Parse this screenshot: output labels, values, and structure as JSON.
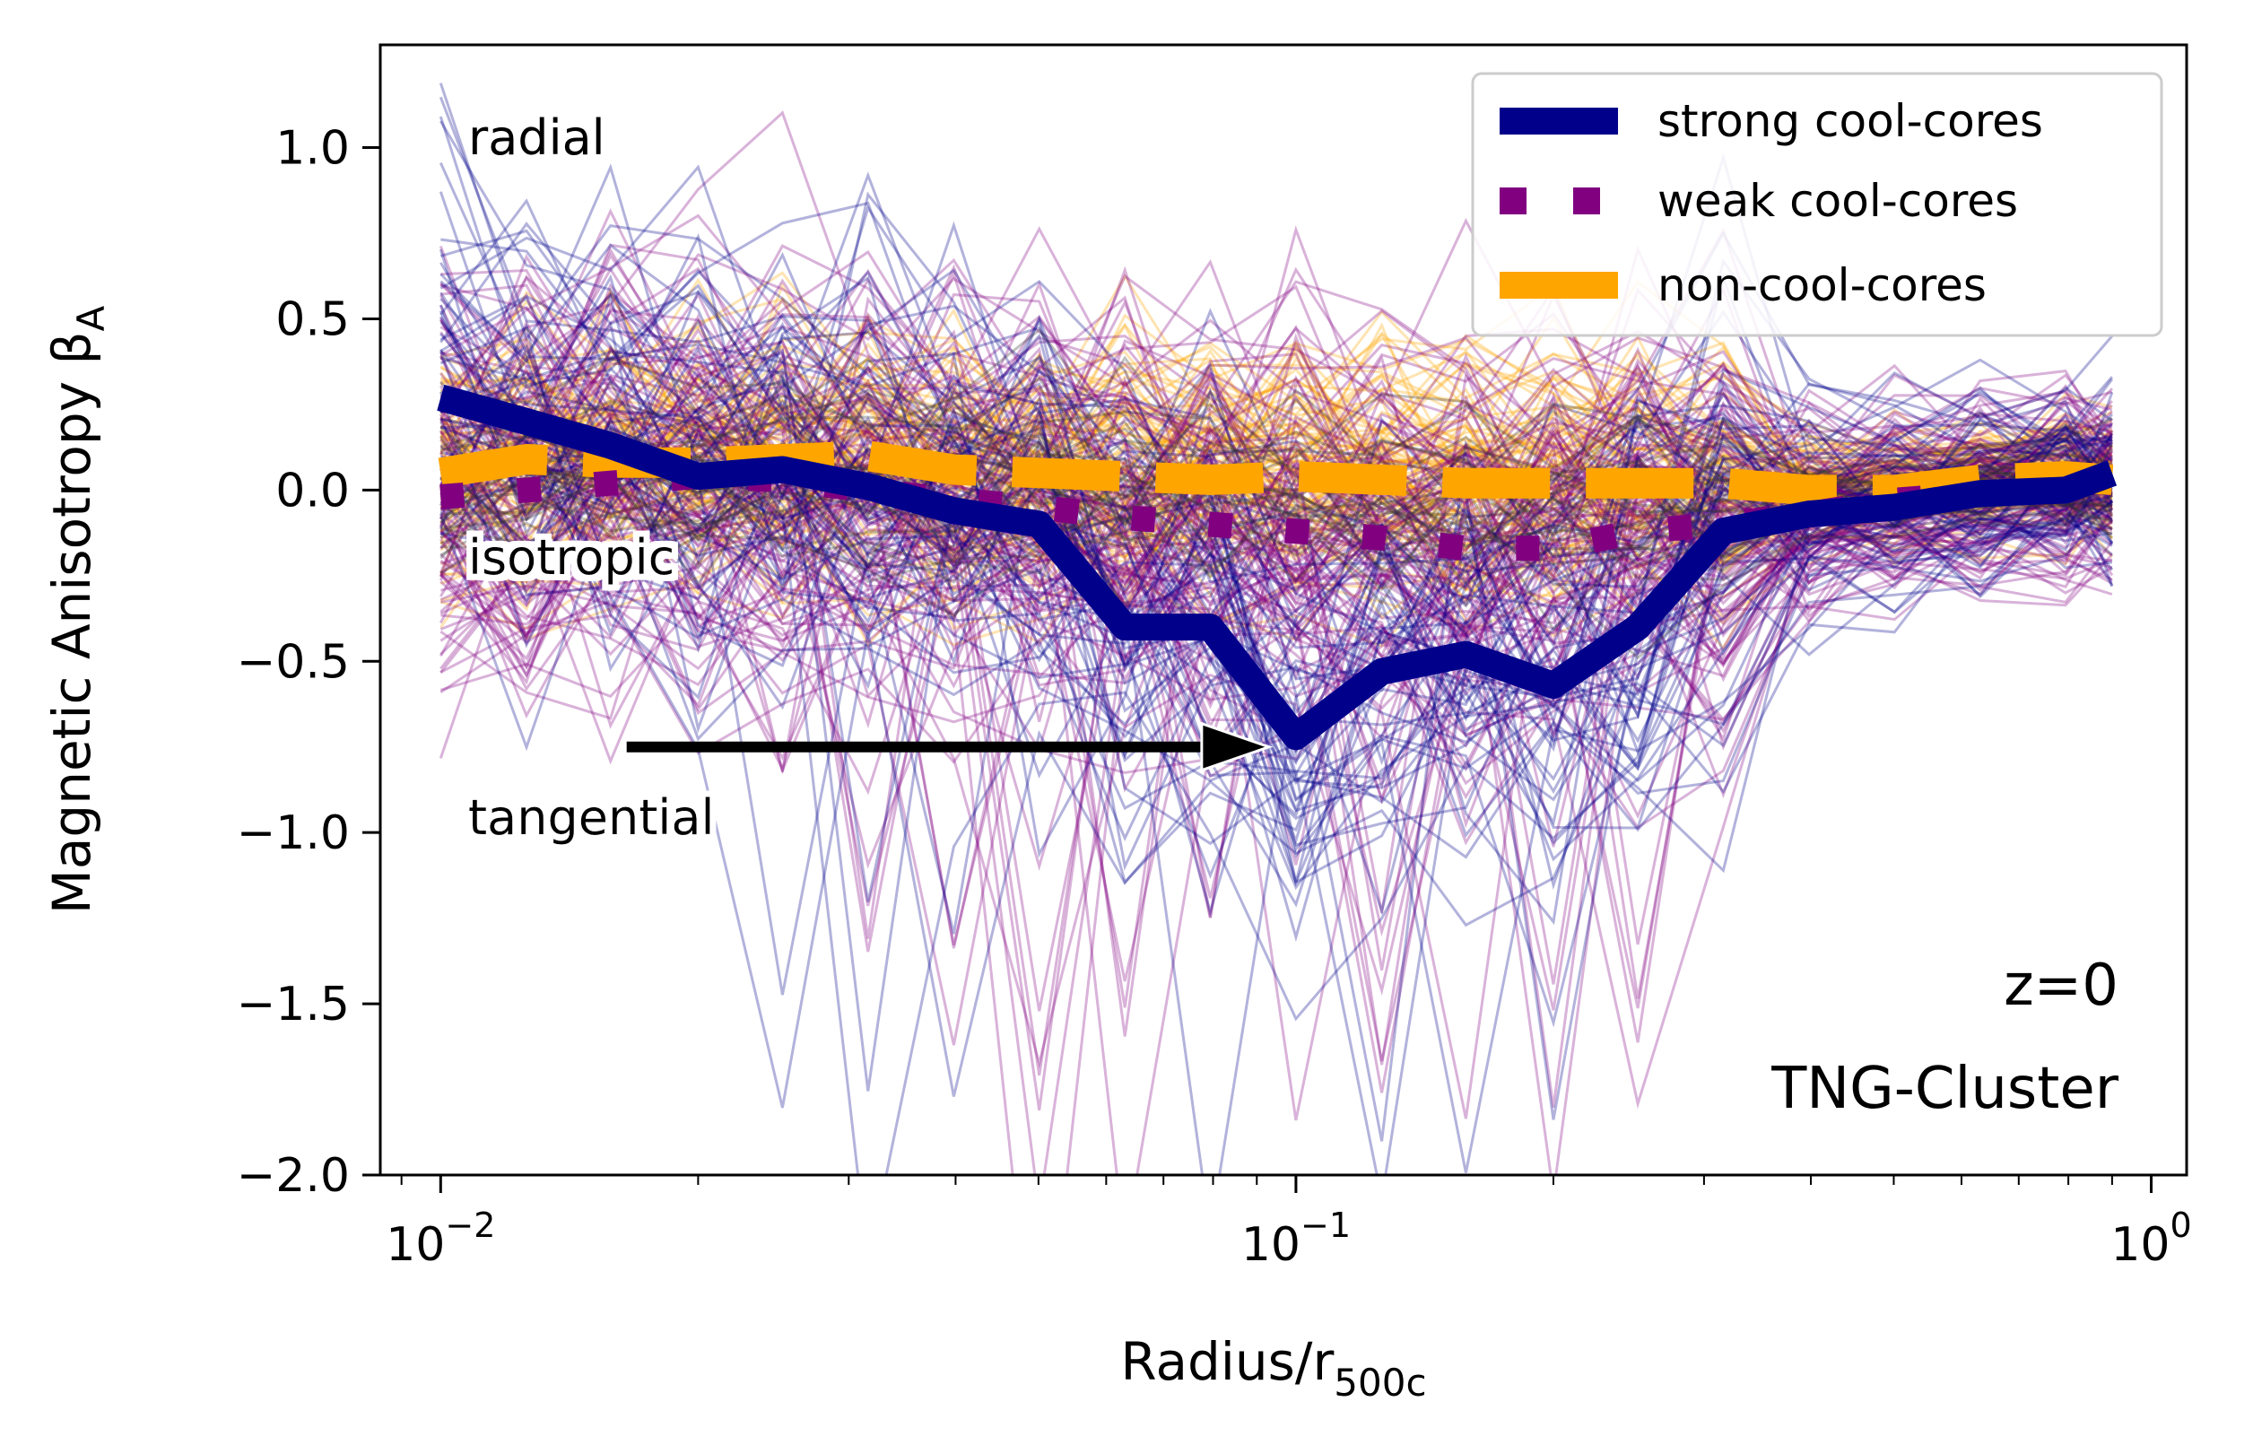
{
  "chart_data": {
    "type": "line",
    "xscale": "log",
    "xlim": [
      0.0085,
      1.1
    ],
    "ylim": [
      -2.0,
      1.3
    ],
    "xlabel_main": "Radius/r",
    "xlabel_sub": "500c",
    "ylabel_main": "Magnetic Anisotropy β",
    "ylabel_sub": "A",
    "xticks": [
      {
        "value": 0.01,
        "base": "10",
        "exp": "−2"
      },
      {
        "value": 0.1,
        "base": "10",
        "exp": "−1"
      },
      {
        "value": 1,
        "base": "10",
        "exp": "0"
      }
    ],
    "yticks": [
      {
        "value": 1.0,
        "label": "1.0"
      },
      {
        "value": 0.5,
        "label": "0.5"
      },
      {
        "value": 0.0,
        "label": "0.0"
      },
      {
        "value": -0.5,
        "label": "−0.5"
      },
      {
        "value": -1.0,
        "label": "−1.0"
      },
      {
        "value": -1.5,
        "label": "−1.5"
      },
      {
        "value": -2.0,
        "label": "−2.0"
      }
    ],
    "legend_position": "top-right",
    "series": [
      {
        "name": "strong cool-cores",
        "color": "#00008b",
        "style": "solid",
        "x": [
          0.01,
          0.0126,
          0.0158,
          0.02,
          0.0251,
          0.0316,
          0.0398,
          0.0501,
          0.0631,
          0.0794,
          0.1,
          0.126,
          0.158,
          0.2,
          0.251,
          0.316,
          0.398,
          0.501,
          0.631,
          0.794,
          0.9
        ],
        "y": [
          0.27,
          0.2,
          0.13,
          0.04,
          0.06,
          0.01,
          -0.06,
          -0.1,
          -0.4,
          -0.4,
          -0.72,
          -0.53,
          -0.48,
          -0.57,
          -0.4,
          -0.12,
          -0.07,
          -0.05,
          -0.01,
          0.0,
          0.05
        ]
      },
      {
        "name": "weak cool-cores",
        "color": "#800080",
        "style": "dotted",
        "x": [
          0.01,
          0.0126,
          0.0158,
          0.02,
          0.0251,
          0.0316,
          0.0398,
          0.0501,
          0.0631,
          0.0794,
          0.1,
          0.126,
          0.158,
          0.2,
          0.251,
          0.316,
          0.398,
          0.501,
          0.631,
          0.794,
          0.9
        ],
        "y": [
          -0.02,
          0.0,
          0.02,
          0.04,
          0.03,
          0.0,
          -0.03,
          -0.05,
          -0.08,
          -0.1,
          -0.12,
          -0.14,
          -0.17,
          -0.17,
          -0.12,
          -0.1,
          -0.07,
          -0.03,
          -0.01,
          0.0,
          0.02
        ]
      },
      {
        "name": "non-cool-cores",
        "color": "#ffa500",
        "style": "dashed",
        "x": [
          0.01,
          0.0126,
          0.0158,
          0.02,
          0.0251,
          0.0316,
          0.0398,
          0.0501,
          0.0631,
          0.0794,
          0.1,
          0.126,
          0.158,
          0.2,
          0.251,
          0.316,
          0.398,
          0.501,
          0.631,
          0.794,
          0.9
        ],
        "y": [
          0.05,
          0.09,
          0.08,
          0.08,
          0.09,
          0.1,
          0.06,
          0.05,
          0.04,
          0.03,
          0.04,
          0.03,
          0.02,
          0.02,
          0.02,
          0.02,
          0.0,
          0.0,
          0.03,
          0.04,
          0.03
        ]
      }
    ],
    "annotations": {
      "radial": "radial",
      "isotropic": "isotropic",
      "tangential": "tangential",
      "redshift": "z=0",
      "simulation": "TNG-Cluster"
    },
    "arrow": {
      "from": [
        0.0165,
        -0.75
      ],
      "to": [
        0.093,
        -0.75
      ]
    }
  }
}
